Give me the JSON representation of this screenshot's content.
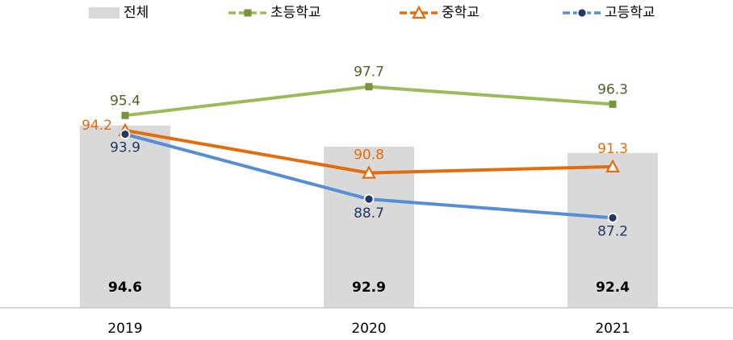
{
  "chart_data": {
    "type": "combo",
    "categories": [
      "2019",
      "2020",
      "2021"
    ],
    "ylim": [
      80,
      100
    ],
    "series": [
      {
        "name": "전체",
        "type": "bar",
        "color": "#d9d9d9",
        "label_color": "#000000",
        "values": [
          94.6,
          92.9,
          92.4
        ]
      },
      {
        "name": "초등학교",
        "type": "line",
        "marker": "square",
        "color": "#9bbb59",
        "marker_color": "#77933c",
        "label_color": "#4f6228",
        "values": [
          95.4,
          97.7,
          96.3
        ]
      },
      {
        "name": "중학교",
        "type": "line",
        "marker": "triangle",
        "color": "#e46c0a",
        "marker_color": "#e46c0a",
        "label_color": "#e46c0a",
        "values": [
          94.2,
          90.8,
          91.3
        ]
      },
      {
        "name": "고등학교",
        "type": "line",
        "marker": "circle",
        "color": "#558ed5",
        "marker_color": "#1f3864",
        "label_color": "#1f3864",
        "values": [
          93.9,
          88.7,
          87.2
        ]
      }
    ]
  }
}
